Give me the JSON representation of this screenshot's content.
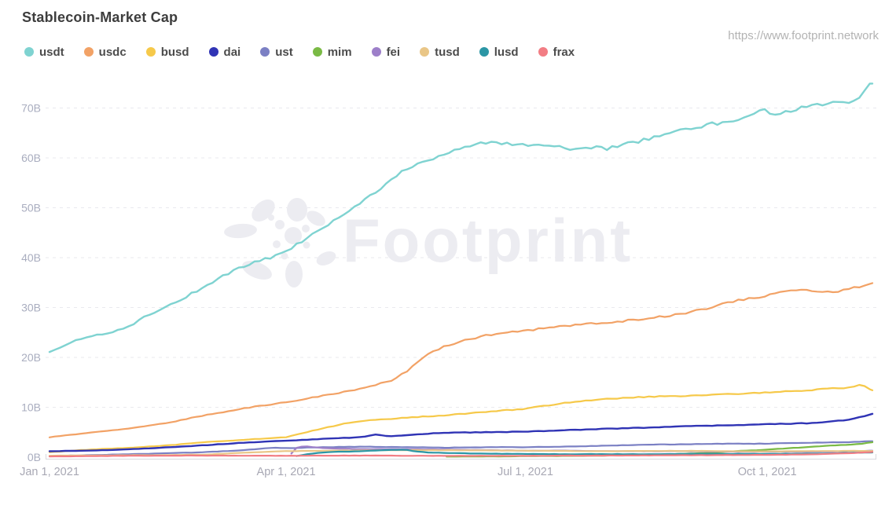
{
  "header": {
    "title": "Stablecoin-Market Cap",
    "source_url": "https://www.footprint.network",
    "watermark_brand": "Footprint"
  },
  "legend": {
    "items": [
      {
        "label": "usdt",
        "color": "#7fd3d1"
      },
      {
        "label": "usdc",
        "color": "#f2a266"
      },
      {
        "label": "busd",
        "color": "#f6c94a"
      },
      {
        "label": "dai",
        "color": "#3034b5"
      },
      {
        "label": "ust",
        "color": "#7b80c4"
      },
      {
        "label": "mim",
        "color": "#7aba45"
      },
      {
        "label": "fei",
        "color": "#9d7fc9"
      },
      {
        "label": "tusd",
        "color": "#e9c687"
      },
      {
        "label": "lusd",
        "color": "#2b96a5"
      },
      {
        "label": "frax",
        "color": "#f27d84"
      }
    ]
  },
  "chart_data": {
    "type": "line",
    "title": "Stablecoin-Market Cap",
    "unit": "billions USD",
    "grid": "horizontal dashed",
    "legend_position": "top",
    "x_axis": {
      "kind": "time",
      "start_date": "Jan 1, 2021",
      "end_date": "Nov 10, 2021",
      "xlim_days": [
        0,
        313
      ],
      "ticks": [
        {
          "day": 0,
          "label": "Jan 1, 2021"
        },
        {
          "day": 90,
          "label": "Apr 1, 2021"
        },
        {
          "day": 181,
          "label": "Jul 1, 2021"
        },
        {
          "day": 273,
          "label": "Oct 1, 2021"
        }
      ]
    },
    "y_axis": {
      "ylim": [
        0,
        75.5
      ],
      "ticks": [
        {
          "value": 0,
          "label": "0B"
        },
        {
          "value": 10,
          "label": "10B"
        },
        {
          "value": 20,
          "label": "20B"
        },
        {
          "value": 30,
          "label": "30B"
        },
        {
          "value": 40,
          "label": "40B"
        },
        {
          "value": 50,
          "label": "50B"
        },
        {
          "value": 60,
          "label": "60B"
        },
        {
          "value": 70,
          "label": "70B"
        }
      ]
    },
    "series": [
      {
        "name": "usdt",
        "color": "#7fd3d1",
        "width": 2.4,
        "points": [
          [
            0,
            21
          ],
          [
            6,
            22.3
          ],
          [
            10,
            23.4
          ],
          [
            15,
            24.3
          ],
          [
            20,
            24.5
          ],
          [
            25,
            25.3
          ],
          [
            31,
            26.5
          ],
          [
            38,
            28.6
          ],
          [
            46,
            30.6
          ],
          [
            52,
            32.2
          ],
          [
            59,
            34.2
          ],
          [
            67,
            36.6
          ],
          [
            74,
            38.3
          ],
          [
            80,
            39.4
          ],
          [
            85,
            40.2
          ],
          [
            90,
            41.2
          ],
          [
            97,
            43.6
          ],
          [
            105,
            46.2
          ],
          [
            112,
            48.9
          ],
          [
            120,
            51.6
          ],
          [
            127,
            54.2
          ],
          [
            135,
            57.6
          ],
          [
            143,
            59.6
          ],
          [
            151,
            60.9
          ],
          [
            158,
            62.3
          ],
          [
            164,
            63.2
          ],
          [
            172,
            62.9
          ],
          [
            181,
            62.8
          ],
          [
            188,
            62.6
          ],
          [
            196,
            61.9
          ],
          [
            204,
            61.7
          ],
          [
            208,
            62.0
          ],
          [
            212,
            61.9
          ],
          [
            220,
            62.9
          ],
          [
            227,
            63.7
          ],
          [
            235,
            64.9
          ],
          [
            243,
            65.9
          ],
          [
            250,
            66.6
          ],
          [
            258,
            67.3
          ],
          [
            265,
            68.1
          ],
          [
            270,
            69.4
          ],
          [
            273,
            69.5
          ],
          [
            276,
            68.6
          ],
          [
            281,
            69.4
          ],
          [
            288,
            70.4
          ],
          [
            296,
            70.9
          ],
          [
            304,
            71.2
          ],
          [
            308,
            72.3
          ],
          [
            311,
            74.6
          ],
          [
            313,
            74.9
          ]
        ]
      },
      {
        "name": "usdc",
        "color": "#f2a266",
        "width": 2.2,
        "points": [
          [
            0,
            4.0
          ],
          [
            15,
            4.9
          ],
          [
            31,
            5.8
          ],
          [
            46,
            7.0
          ],
          [
            59,
            8.4
          ],
          [
            74,
            9.8
          ],
          [
            90,
            11.0
          ],
          [
            105,
            12.4
          ],
          [
            120,
            13.9
          ],
          [
            130,
            15.4
          ],
          [
            136,
            17.2
          ],
          [
            141,
            19.6
          ],
          [
            146,
            21.2
          ],
          [
            151,
            22.4
          ],
          [
            158,
            23.4
          ],
          [
            166,
            24.4
          ],
          [
            174,
            24.9
          ],
          [
            181,
            25.4
          ],
          [
            190,
            25.9
          ],
          [
            196,
            26.3
          ],
          [
            205,
            26.7
          ],
          [
            212,
            27.0
          ],
          [
            220,
            27.4
          ],
          [
            227,
            27.8
          ],
          [
            235,
            28.3
          ],
          [
            243,
            29.0
          ],
          [
            250,
            29.8
          ],
          [
            258,
            31.0
          ],
          [
            265,
            31.7
          ],
          [
            273,
            32.3
          ],
          [
            279,
            33.2
          ],
          [
            285,
            33.6
          ],
          [
            292,
            33.3
          ],
          [
            298,
            33.1
          ],
          [
            304,
            33.7
          ],
          [
            309,
            34.3
          ],
          [
            313,
            34.9
          ]
        ]
      },
      {
        "name": "busd",
        "color": "#f6c94a",
        "width": 2.2,
        "points": [
          [
            0,
            1.0
          ],
          [
            15,
            1.5
          ],
          [
            31,
            1.9
          ],
          [
            46,
            2.4
          ],
          [
            59,
            3.0
          ],
          [
            74,
            3.5
          ],
          [
            90,
            4.0
          ],
          [
            97,
            4.9
          ],
          [
            105,
            5.9
          ],
          [
            112,
            6.7
          ],
          [
            120,
            7.3
          ],
          [
            135,
            7.9
          ],
          [
            151,
            8.4
          ],
          [
            166,
            9.1
          ],
          [
            181,
            9.7
          ],
          [
            196,
            10.9
          ],
          [
            212,
            11.7
          ],
          [
            227,
            12.1
          ],
          [
            243,
            12.3
          ],
          [
            258,
            12.6
          ],
          [
            273,
            13.0
          ],
          [
            288,
            13.4
          ],
          [
            296,
            13.7
          ],
          [
            304,
            13.9
          ],
          [
            307,
            14.3
          ],
          [
            309,
            14.6
          ],
          [
            311,
            13.8
          ],
          [
            313,
            13.4
          ]
        ]
      },
      {
        "name": "dai",
        "color": "#3034b5",
        "width": 2.4,
        "points": [
          [
            0,
            1.2
          ],
          [
            15,
            1.3
          ],
          [
            31,
            1.6
          ],
          [
            46,
            2.0
          ],
          [
            59,
            2.4
          ],
          [
            74,
            2.9
          ],
          [
            90,
            3.3
          ],
          [
            105,
            3.7
          ],
          [
            118,
            4.0
          ],
          [
            124,
            4.5
          ],
          [
            130,
            4.2
          ],
          [
            137,
            4.4
          ],
          [
            143,
            4.7
          ],
          [
            151,
            4.9
          ],
          [
            166,
            5.0
          ],
          [
            181,
            5.1
          ],
          [
            196,
            5.4
          ],
          [
            212,
            5.7
          ],
          [
            227,
            5.9
          ],
          [
            243,
            6.2
          ],
          [
            258,
            6.4
          ],
          [
            273,
            6.6
          ],
          [
            288,
            6.8
          ],
          [
            296,
            7.1
          ],
          [
            304,
            7.5
          ],
          [
            309,
            8.1
          ],
          [
            313,
            8.7
          ]
        ]
      },
      {
        "name": "ust",
        "color": "#7b80c4",
        "width": 2.2,
        "points": [
          [
            0,
            0.2
          ],
          [
            15,
            0.4
          ],
          [
            31,
            0.6
          ],
          [
            46,
            0.8
          ],
          [
            59,
            1.0
          ],
          [
            74,
            1.4
          ],
          [
            85,
            1.9
          ],
          [
            90,
            1.8
          ],
          [
            105,
            2.0
          ],
          [
            120,
            2.1
          ],
          [
            135,
            2.0
          ],
          [
            151,
            1.9
          ],
          [
            166,
            2.0
          ],
          [
            181,
            2.0
          ],
          [
            196,
            2.1
          ],
          [
            212,
            2.3
          ],
          [
            227,
            2.5
          ],
          [
            243,
            2.6
          ],
          [
            258,
            2.7
          ],
          [
            273,
            2.7
          ],
          [
            288,
            2.9
          ],
          [
            304,
            3.0
          ],
          [
            313,
            3.2
          ]
        ]
      },
      {
        "name": "mim",
        "color": "#7aba45",
        "width": 2.2,
        "points": [
          [
            151,
            0.1
          ],
          [
            166,
            0.15
          ],
          [
            181,
            0.2
          ],
          [
            196,
            0.25
          ],
          [
            212,
            0.3
          ],
          [
            227,
            0.45
          ],
          [
            243,
            0.7
          ],
          [
            252,
            0.9
          ],
          [
            258,
            1.1
          ],
          [
            265,
            1.3
          ],
          [
            273,
            1.5
          ],
          [
            281,
            1.8
          ],
          [
            288,
            2.0
          ],
          [
            296,
            2.3
          ],
          [
            304,
            2.5
          ],
          [
            309,
            2.7
          ],
          [
            313,
            3.0
          ]
        ]
      },
      {
        "name": "fei",
        "color": "#9d7fc9",
        "width": 2.2,
        "points": [
          [
            92,
            0.7
          ],
          [
            94,
            1.9
          ],
          [
            97,
            2.2
          ],
          [
            100,
            2.0
          ],
          [
            105,
            1.8
          ],
          [
            112,
            1.7
          ],
          [
            120,
            1.6
          ],
          [
            135,
            1.6
          ],
          [
            151,
            1.5
          ],
          [
            166,
            1.4
          ],
          [
            181,
            1.3
          ],
          [
            196,
            1.3
          ],
          [
            212,
            1.2
          ],
          [
            227,
            1.2
          ],
          [
            243,
            1.2
          ],
          [
            258,
            1.1
          ],
          [
            273,
            1.1
          ],
          [
            288,
            1.1
          ],
          [
            304,
            1.2
          ],
          [
            313,
            1.3
          ]
        ]
      },
      {
        "name": "tusd",
        "color": "#e9c687",
        "width": 2.2,
        "points": [
          [
            0,
            0.3
          ],
          [
            15,
            0.33
          ],
          [
            31,
            0.38
          ],
          [
            46,
            0.42
          ],
          [
            59,
            0.5
          ],
          [
            74,
            0.9
          ],
          [
            90,
            1.2
          ],
          [
            105,
            1.3
          ],
          [
            120,
            1.35
          ],
          [
            135,
            1.4
          ],
          [
            151,
            1.4
          ],
          [
            166,
            1.35
          ],
          [
            181,
            1.3
          ],
          [
            196,
            1.25
          ],
          [
            212,
            1.2
          ],
          [
            227,
            1.25
          ],
          [
            243,
            1.25
          ],
          [
            258,
            1.2
          ],
          [
            273,
            1.15
          ],
          [
            288,
            1.2
          ],
          [
            304,
            1.25
          ],
          [
            313,
            1.25
          ]
        ]
      },
      {
        "name": "lusd",
        "color": "#2b96a5",
        "width": 2.2,
        "points": [
          [
            94,
            0.2
          ],
          [
            98,
            0.6
          ],
          [
            103,
            0.9
          ],
          [
            108,
            1.05
          ],
          [
            115,
            1.15
          ],
          [
            123,
            1.3
          ],
          [
            130,
            1.45
          ],
          [
            135,
            1.5
          ],
          [
            139,
            1.2
          ],
          [
            144,
            0.95
          ],
          [
            151,
            0.85
          ],
          [
            160,
            0.75
          ],
          [
            166,
            0.7
          ],
          [
            181,
            0.65
          ],
          [
            196,
            0.6
          ],
          [
            212,
            0.6
          ],
          [
            227,
            0.6
          ],
          [
            243,
            0.65
          ],
          [
            258,
            0.65
          ],
          [
            273,
            0.65
          ],
          [
            288,
            0.7
          ],
          [
            296,
            0.75
          ],
          [
            304,
            0.85
          ],
          [
            313,
            0.95
          ]
        ]
      },
      {
        "name": "frax",
        "color": "#f27d84",
        "width": 2.2,
        "points": [
          [
            0,
            0.15
          ],
          [
            15,
            0.2
          ],
          [
            31,
            0.28
          ],
          [
            46,
            0.3
          ],
          [
            59,
            0.32
          ],
          [
            74,
            0.3
          ],
          [
            90,
            0.28
          ],
          [
            105,
            0.3
          ],
          [
            120,
            0.32
          ],
          [
            135,
            0.28
          ],
          [
            151,
            0.26
          ],
          [
            166,
            0.26
          ],
          [
            181,
            0.27
          ],
          [
            196,
            0.3
          ],
          [
            212,
            0.32
          ],
          [
            227,
            0.35
          ],
          [
            243,
            0.38
          ],
          [
            258,
            0.42
          ],
          [
            273,
            0.45
          ],
          [
            288,
            0.55
          ],
          [
            296,
            0.65
          ],
          [
            304,
            0.8
          ],
          [
            309,
            0.9
          ],
          [
            313,
            1.05
          ]
        ]
      }
    ]
  }
}
